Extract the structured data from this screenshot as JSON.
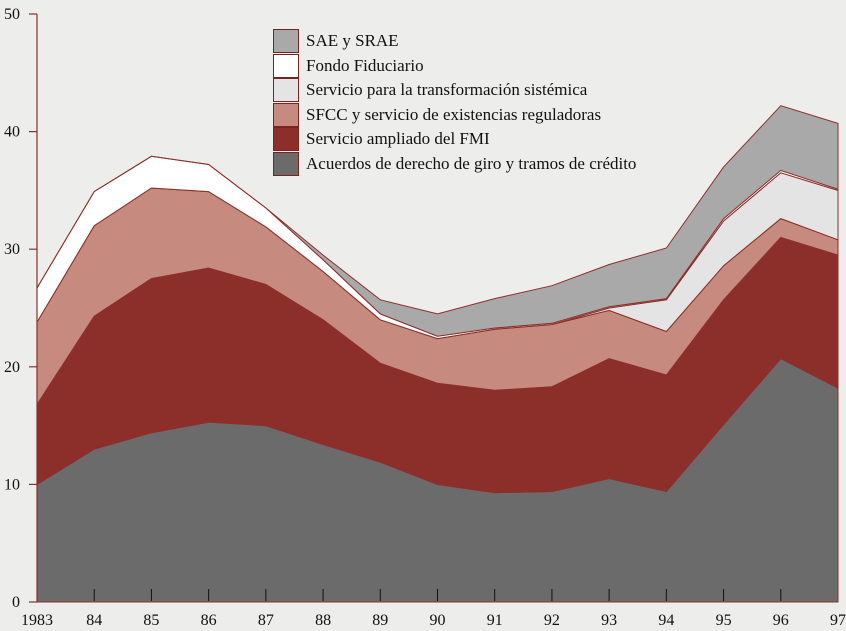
{
  "chart_data": {
    "type": "stacked-area",
    "categories": [
      "1983",
      "84",
      "85",
      "86",
      "87",
      "88",
      "89",
      "90",
      "91",
      "92",
      "93",
      "94",
      "95",
      "96",
      "97"
    ],
    "series": [
      {
        "name": "Acuerdos de derecho de giro y tramos de crédito",
        "color": "#6b6b6b",
        "values": [
          10,
          13,
          14.4,
          15.3,
          15,
          13.4,
          11.9,
          10,
          9.3,
          9.4,
          10.5,
          9.4,
          15.1,
          20.7,
          18.2
        ]
      },
      {
        "name": "Servicio ampliado del FMI",
        "color": "#8c2f2b",
        "values": [
          6.8,
          11.3,
          13.1,
          13.1,
          12,
          10.6,
          8.4,
          8.6,
          8.7,
          8.9,
          10.2,
          9.9,
          10.6,
          10.3,
          11.3
        ]
      },
      {
        "name": "SFCC y servicio de existencias reguladoras",
        "color": "#c68a7e",
        "values": [
          7,
          7.7,
          7.7,
          6.5,
          4.9,
          4.1,
          3.7,
          3.8,
          5.2,
          5.3,
          4.1,
          3.7,
          2.9,
          1.6,
          1.3
        ]
      },
      {
        "name": "Servicio para la transformación sistémica",
        "color": "#e4e4e4",
        "values": [
          0,
          0,
          0,
          0,
          0,
          0,
          0,
          0,
          0,
          0,
          0.2,
          2.7,
          3.8,
          3.9,
          4.2
        ]
      },
      {
        "name": "Fondo Fiduciario",
        "color": "#ffffff",
        "values": [
          2.9,
          2.9,
          2.7,
          2.3,
          1.6,
          1.0,
          0.5,
          0.2,
          0.1,
          0.1,
          0.1,
          0.1,
          0.2,
          0.2,
          0.1
        ]
      },
      {
        "name": "SAE y SRAE",
        "color": "#a9a9a9",
        "values": [
          0,
          0,
          0,
          0,
          0,
          0.4,
          1.2,
          1.9,
          2.5,
          3.2,
          3.6,
          4.3,
          4.4,
          5.5,
          5.6
        ]
      }
    ],
    "ylim": [
      0,
      50
    ],
    "yticks": [
      0,
      10,
      20,
      30,
      40,
      50
    ]
  }
}
